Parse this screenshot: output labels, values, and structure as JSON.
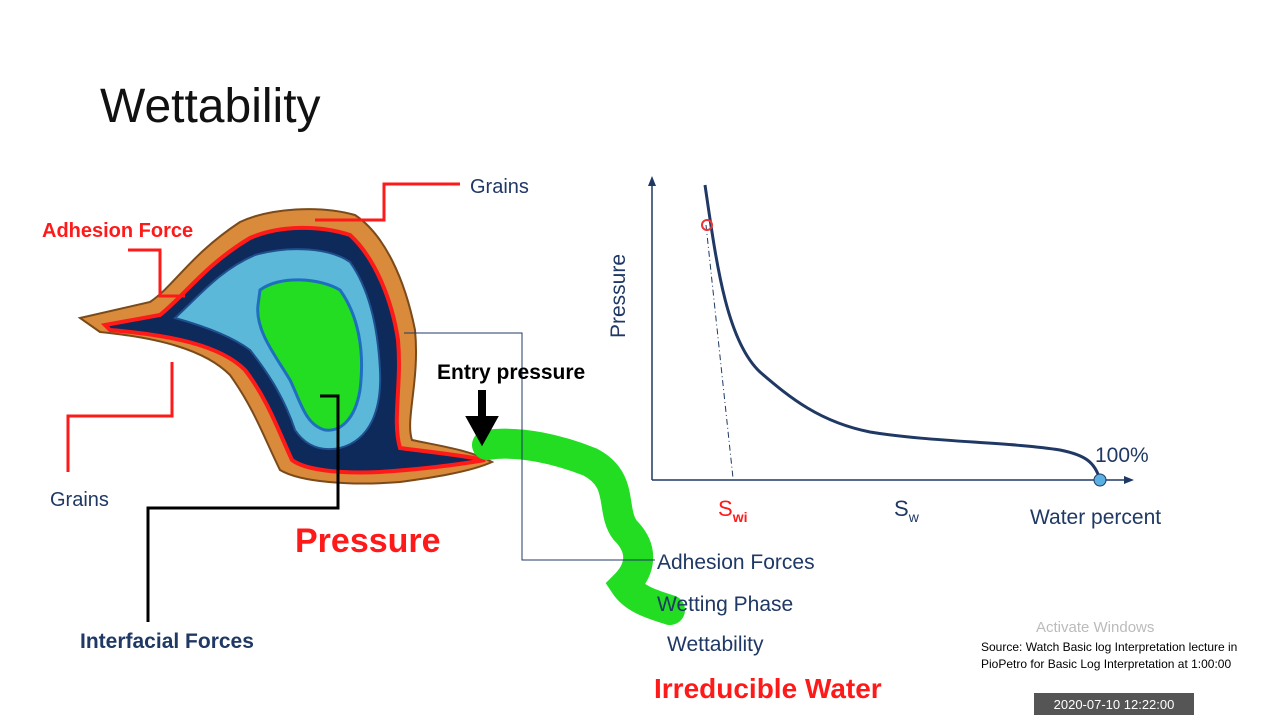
{
  "title": "Wettability",
  "diagram": {
    "labels": {
      "grains_top": "Grains",
      "adhesion_force": "Adhesion Force",
      "grains_bottom": "Grains",
      "entry_pressure": "Entry pressure",
      "pressure": "Pressure",
      "interfacial_forces": "Interfacial Forces",
      "adhesion_forces": "Adhesion Forces",
      "wetting_phase": "Wetting Phase",
      "wettability": "Wettability",
      "irreducible_water": "Irreducible Water"
    }
  },
  "graph": {
    "y_axis_label": "Pressure",
    "swi": {
      "main": "S",
      "sub": "wi"
    },
    "sw": {
      "main": "S",
      "sub": "w"
    },
    "end_label": "100%",
    "x_axis_label": "Water percent"
  },
  "overlay": {
    "watermark": "Activate Windows",
    "source_line1": "Source: Watch Basic log Interpretation lecture in",
    "source_line2": "PioPetro for Basic Log Interpretation at 1:00:00",
    "timestamp": "2020-07-10 12:22:00"
  }
}
